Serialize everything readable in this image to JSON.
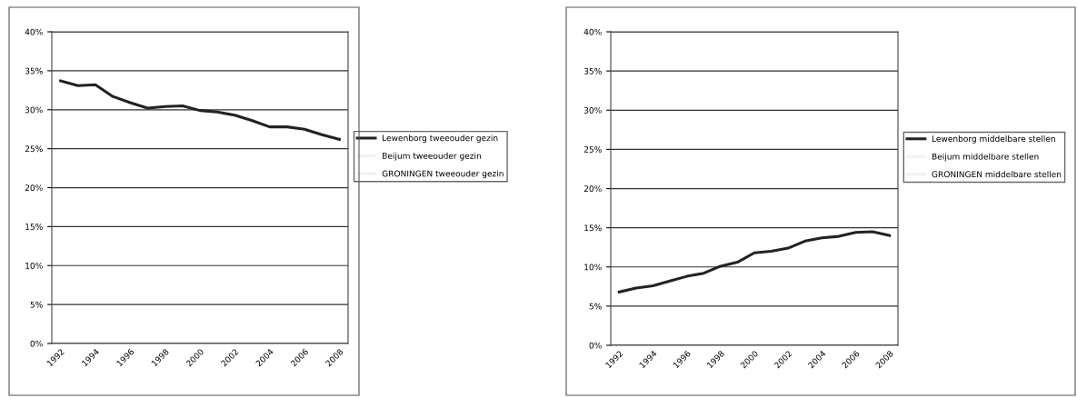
{
  "chart_data": [
    {
      "type": "line",
      "categories": [
        "1992",
        null,
        "1994",
        null,
        "1996",
        null,
        "1998",
        null,
        "2000",
        null,
        "2002",
        null,
        "2004",
        null,
        "2006",
        null,
        "2008"
      ],
      "series": [
        {
          "name": "Lewenborg tweeouder gezin",
          "color": "#222222",
          "values": [
            33.7,
            33.1,
            33.2,
            31.7,
            30.9,
            30.2,
            30.4,
            30.5,
            29.9,
            29.7,
            29.3,
            28.6,
            27.8,
            27.8,
            27.5,
            26.8,
            26.2
          ]
        },
        {
          "name": "Beijum tweeouder gezin",
          "color": "#f2f2f2",
          "values": [
            null,
            null,
            null,
            null,
            null,
            null,
            null,
            null,
            null,
            null,
            null,
            null,
            null,
            null,
            null,
            null,
            null
          ]
        },
        {
          "name": "GRONINGEN tweeouder gezin",
          "color": "#f2f2f2",
          "values": [
            null,
            null,
            null,
            null,
            null,
            null,
            null,
            null,
            null,
            null,
            null,
            null,
            null,
            null,
            null,
            null,
            null
          ]
        }
      ],
      "ylim": [
        0,
        40
      ],
      "yticks": [
        {
          "value": 0,
          "label": "0%"
        },
        {
          "value": 5,
          "label": "5%"
        },
        {
          "value": 10,
          "label": "10%"
        },
        {
          "value": 15,
          "label": "15%"
        },
        {
          "value": 20,
          "label": "20%"
        },
        {
          "value": 25,
          "label": "25%"
        },
        {
          "value": 30,
          "label": "30%"
        },
        {
          "value": 35,
          "label": "35%"
        },
        {
          "value": 40,
          "label": "40%"
        }
      ],
      "grid": "y",
      "legend": "right",
      "marker": "none",
      "line_style": "solid"
    },
    {
      "type": "line",
      "categories": [
        "1992",
        null,
        "1994",
        null,
        "1996",
        null,
        "1998",
        null,
        "2000",
        null,
        "2002",
        null,
        "2004",
        null,
        "2006",
        null,
        "2008"
      ],
      "series": [
        {
          "name": "Lewenborg middelbare stellen",
          "color": "#222222",
          "values": [
            6.8,
            7.3,
            7.6,
            8.2,
            8.8,
            9.2,
            10.1,
            10.6,
            11.8,
            12.0,
            12.4,
            13.3,
            13.7,
            13.9,
            14.4,
            14.5,
            14.0
          ]
        },
        {
          "name": "Beijum middelbare stellen",
          "color": "#f2f2f2",
          "values": [
            null,
            null,
            null,
            null,
            null,
            null,
            null,
            null,
            null,
            null,
            null,
            null,
            null,
            null,
            null,
            null,
            null
          ]
        },
        {
          "name": "GRONINGEN middelbare stellen",
          "color": "#f2f2f2",
          "values": [
            null,
            null,
            null,
            null,
            null,
            null,
            null,
            null,
            null,
            null,
            null,
            null,
            null,
            null,
            null,
            null,
            null
          ]
        }
      ],
      "ylim": [
        0,
        40
      ],
      "yticks": [
        {
          "value": 0,
          "label": "0%"
        },
        {
          "value": 5,
          "label": "5%"
        },
        {
          "value": 10,
          "label": "10%"
        },
        {
          "value": 15,
          "label": "15%"
        },
        {
          "value": 20,
          "label": "20%"
        },
        {
          "value": 25,
          "label": "25%"
        },
        {
          "value": 30,
          "label": "30%"
        },
        {
          "value": 35,
          "label": "35%"
        },
        {
          "value": 40,
          "label": "40%"
        }
      ],
      "grid": "y",
      "legend": "right",
      "marker": "none",
      "line_style": "solid"
    }
  ]
}
